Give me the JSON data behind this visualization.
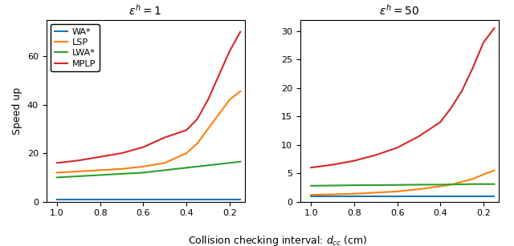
{
  "x": [
    1.0,
    0.9,
    0.8,
    0.7,
    0.6,
    0.5,
    0.4,
    0.35,
    0.3,
    0.25,
    0.2,
    0.15
  ],
  "plot1": {
    "title": "$\\varepsilon^h = 1$",
    "WA*": [
      1.0,
      1.0,
      1.0,
      1.0,
      1.0,
      1.0,
      1.0,
      1.0,
      1.0,
      1.0,
      1.0,
      1.0
    ],
    "LSP": [
      12.0,
      12.5,
      13.0,
      13.5,
      14.5,
      16.0,
      20.0,
      24.0,
      30.0,
      36.0,
      42.0,
      45.5
    ],
    "LWA*": [
      10.0,
      10.5,
      11.0,
      11.5,
      12.0,
      13.0,
      14.0,
      14.5,
      15.0,
      15.5,
      16.0,
      16.5
    ],
    "MPLP": [
      16.0,
      17.0,
      18.5,
      20.0,
      22.5,
      26.5,
      29.5,
      34.0,
      42.0,
      52.0,
      62.0,
      70.0
    ],
    "ylim": [
      0,
      75
    ],
    "yticks": [
      0,
      20,
      40,
      60
    ]
  },
  "plot2": {
    "title": "$\\varepsilon^h = 50$",
    "WA*": [
      1.0,
      1.0,
      1.0,
      1.0,
      1.0,
      1.0,
      1.0,
      1.0,
      1.0,
      1.0,
      1.0,
      1.0
    ],
    "LSP": [
      1.2,
      1.3,
      1.4,
      1.6,
      1.8,
      2.2,
      2.7,
      3.0,
      3.5,
      4.0,
      4.8,
      5.5
    ],
    "LWA*": [
      2.8,
      2.85,
      2.9,
      2.92,
      2.95,
      3.0,
      3.0,
      3.05,
      3.05,
      3.1,
      3.1,
      3.1
    ],
    "MPLP": [
      6.0,
      6.5,
      7.2,
      8.2,
      9.5,
      11.5,
      14.0,
      16.5,
      19.5,
      23.5,
      28.0,
      30.5
    ],
    "ylim": [
      0,
      32
    ],
    "yticks": [
      0,
      5,
      10,
      15,
      20,
      25,
      30
    ]
  },
  "colors": {
    "WA*": "#1f77b4",
    "LSP": "#ff7f0e",
    "LWA*": "#2ca02c",
    "MPLP": "#d62728"
  },
  "xlabel": "Collision checking interval: $d_{cc}$ (cm)",
  "ylabel": "Speed up",
  "xticks": [
    1.0,
    0.8,
    0.6,
    0.4,
    0.2
  ],
  "xmin": 1.05,
  "xmax": 0.13,
  "legend_labels": [
    "WA*",
    "LSP",
    "LWA*",
    "MPLP"
  ],
  "title_fontsize": 10,
  "label_fontsize": 9,
  "tick_fontsize": 8,
  "legend_fontsize": 8,
  "linewidth": 1.5
}
